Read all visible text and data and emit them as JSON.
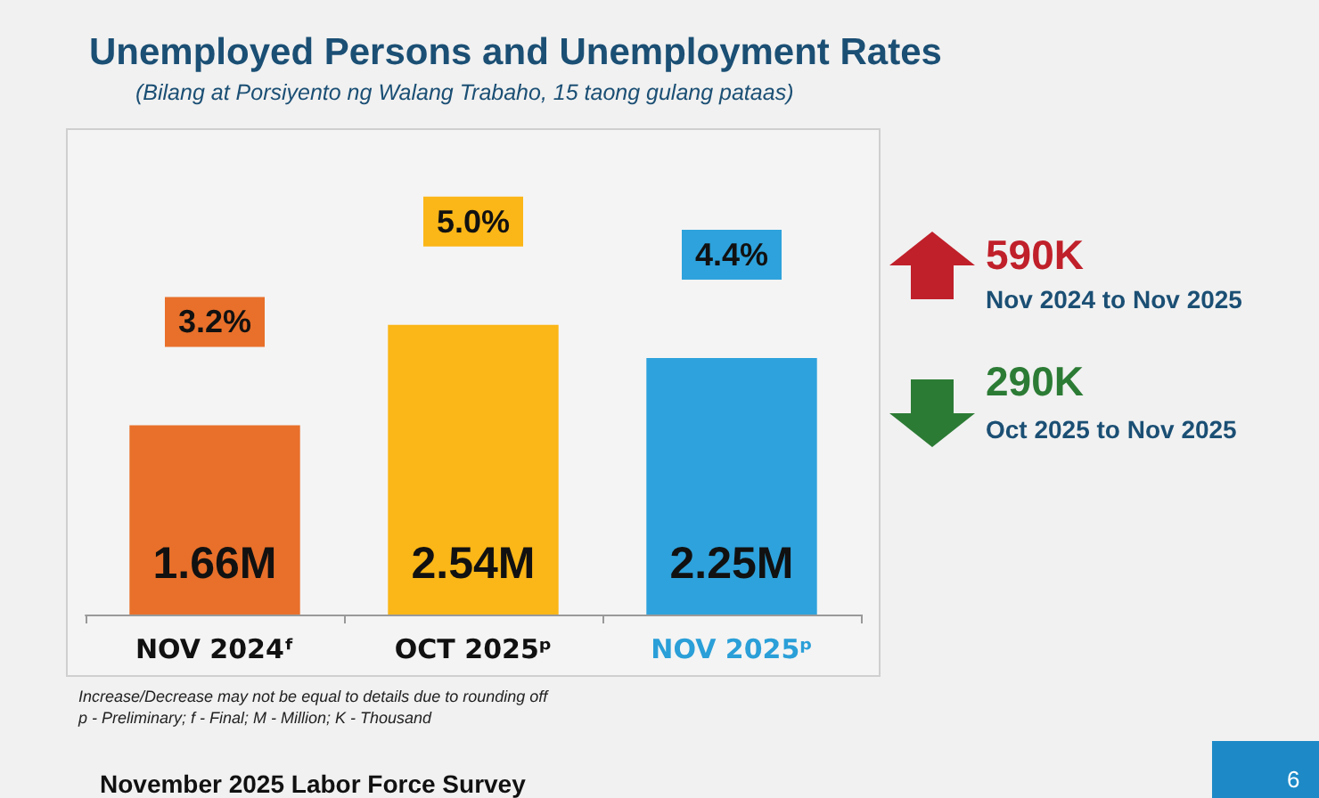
{
  "chart_data": {
    "type": "bar",
    "title": "Unemployed Persons and Unemployment Rates",
    "subtitle": "(Bilang at Porsiyento ng Walang Trabaho, 15 taong gulang pataas)",
    "categories": [
      "NOV 2024ᶠ",
      "OCT 2025ᵖ",
      "NOV 2025ᵖ"
    ],
    "values": [
      1.66,
      2.54,
      2.25
    ],
    "value_labels": [
      "1.66M",
      "2.54M",
      "2.25M"
    ],
    "colors": [
      "#e8702a",
      "#fbb617",
      "#2ea2dc"
    ],
    "annotations": [
      "3.2%",
      "5.0%",
      "4.4%",
      "590K",
      "Nov 2024 to Nov 2025",
      "290K",
      "Oct 2025 to Nov 2025",
      "Increase/Decrease may not be equal to details due to rounding off",
      "p - Preliminary; f - Final; M - Million; K - Thousand",
      "November 2025 Labor Force Survey",
      "6"
    ]
  }
}
